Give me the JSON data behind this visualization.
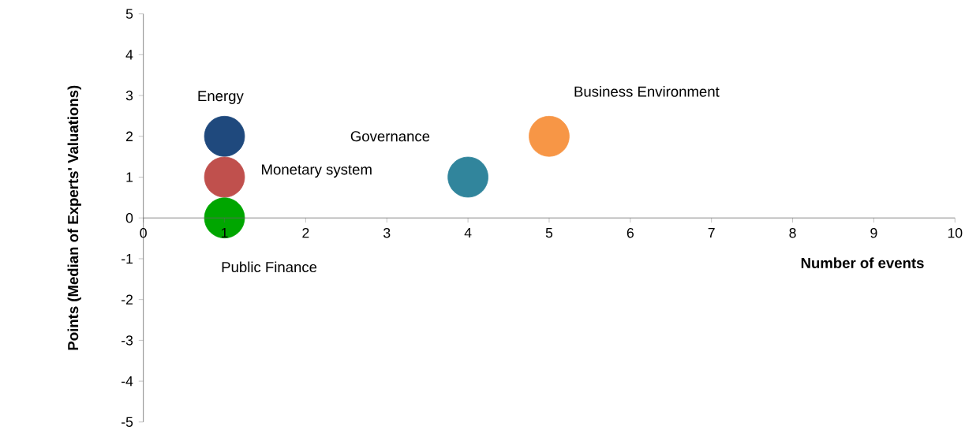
{
  "chart_data": {
    "type": "bubble",
    "xlabel": "Number of events",
    "ylabel": "Points (Median of Experts' Valuations)",
    "series": [
      {
        "name": "Energy",
        "color": "#1f497d",
        "x": [
          1
        ],
        "values": [
          2
        ],
        "sizes": [
          1
        ]
      },
      {
        "name": "Monetary system",
        "color": "#c0504d",
        "x": [
          1
        ],
        "values": [
          1
        ],
        "sizes": [
          1
        ]
      },
      {
        "name": "Public Finance",
        "color": "#00a600",
        "x": [
          1
        ],
        "values": [
          0
        ],
        "sizes": [
          1
        ]
      },
      {
        "name": "Governance",
        "color": "#31859c",
        "x": [
          4
        ],
        "values": [
          1
        ],
        "sizes": [
          1
        ]
      },
      {
        "name": "Business Environment",
        "color": "#f79646",
        "x": [
          5
        ],
        "values": [
          2
        ],
        "sizes": [
          1
        ]
      }
    ],
    "xlim": [
      0,
      10
    ],
    "ylim": [
      -5,
      5
    ],
    "xticks": [
      0,
      1,
      2,
      3,
      4,
      5,
      6,
      7,
      8,
      9,
      10
    ],
    "yticks": [
      -5,
      -4,
      -3,
      -2,
      -1,
      0,
      1,
      2,
      3,
      4,
      5
    ],
    "grid": false
  }
}
